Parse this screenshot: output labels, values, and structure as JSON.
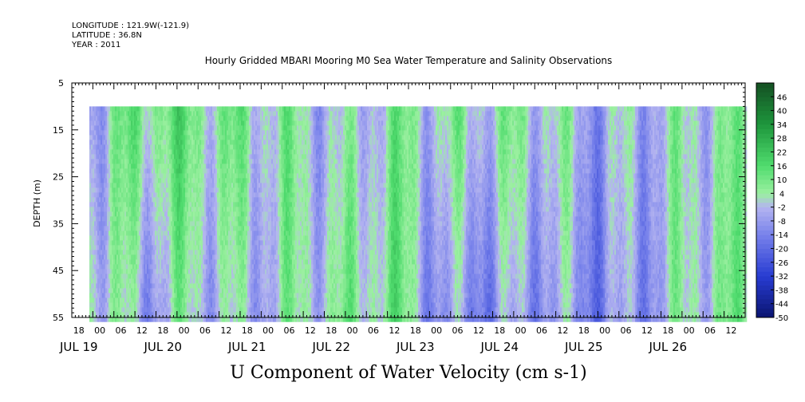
{
  "header": {
    "longitude": "LONGITUDE : 121.9W(-121.9)",
    "latitude": "LATITUDE : 36.8N",
    "year": "YEAR : 2011"
  },
  "chart_data": {
    "type": "heatmap",
    "title": "Hourly Gridded MBARI Mooring M0 Sea Water Temperature and Salinity Observations",
    "xlabel": "U Component of Water Velocity (cm s-1)",
    "ylabel": "DEPTH (m)",
    "y_ticks": [
      5,
      15,
      25,
      35,
      45,
      55
    ],
    "ylim": [
      55,
      5
    ],
    "depth_range": [
      10,
      55
    ],
    "x_hour_ticks": [
      "18",
      "00",
      "06",
      "12",
      "18",
      "00",
      "06",
      "12",
      "18",
      "00",
      "06",
      "12",
      "18",
      "00",
      "06",
      "12",
      "18",
      "00",
      "06",
      "12",
      "18",
      "00",
      "06",
      "12",
      "18",
      "00",
      "06",
      "12",
      "18",
      "00",
      "06",
      "12"
    ],
    "x_day_ticks": [
      "JUL 19",
      "JUL 20",
      "JUL 21",
      "JUL 22",
      "JUL 23",
      "JUL 24",
      "JUL 25",
      "JUL 26"
    ],
    "x_start_day": "JUL 19 18:00",
    "colorbar_ticks": [
      "46",
      "40",
      "34",
      "28",
      "22",
      "16",
      "10",
      "4",
      "-2",
      "-8",
      "-14",
      "-20",
      "-26",
      "-32",
      "-38",
      "-44",
      "-50"
    ],
    "colorbar_range": [
      -50,
      52
    ],
    "colors": {
      "positive_light": "#9af0a0",
      "positive_mid": "#5ee07a",
      "positive_dark": "#1a5f2a",
      "negative_light": "#b4b4f0",
      "negative_mid": "#8c96ec",
      "negative_dark": "#0a1470"
    },
    "day_profile": [
      {
        "day": "JUL 20 00",
        "surface": -4,
        "bottom": 6
      },
      {
        "day": "JUL 20 12",
        "surface": 12,
        "bottom": -6
      },
      {
        "day": "JUL 21 00",
        "surface": 10,
        "bottom": 2
      },
      {
        "day": "JUL 21 12",
        "surface": 6,
        "bottom": -4
      },
      {
        "day": "JUL 22 00",
        "surface": 4,
        "bottom": 2
      },
      {
        "day": "JUL 22 12",
        "surface": -4,
        "bottom": 4
      },
      {
        "day": "JUL 23 00",
        "surface": 6,
        "bottom": 10
      },
      {
        "day": "JUL 23 12",
        "surface": 2,
        "bottom": -12
      },
      {
        "day": "JUL 24 00",
        "surface": 4,
        "bottom": -10
      },
      {
        "day": "JUL 24 12",
        "surface": 4,
        "bottom": -6
      },
      {
        "day": "JUL 25 00",
        "surface": -6,
        "bottom": -12
      },
      {
        "day": "JUL 25 12",
        "surface": -2,
        "bottom": -8
      },
      {
        "day": "JUL 26 00",
        "surface": 2,
        "bottom": 4
      },
      {
        "day": "JUL 26 12",
        "surface": 4,
        "bottom": 6
      }
    ]
  }
}
